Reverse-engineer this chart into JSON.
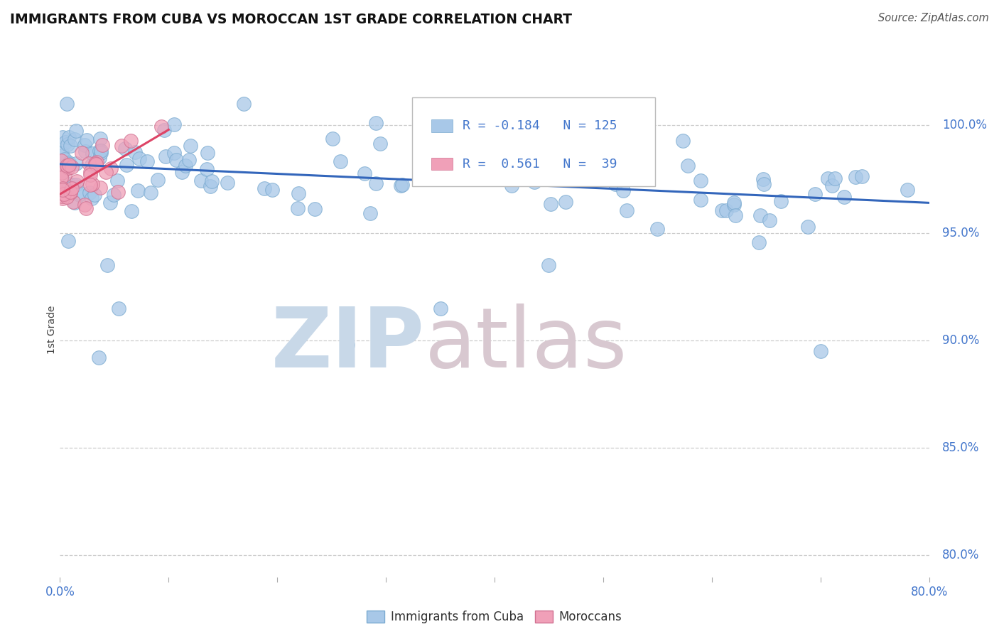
{
  "title": "IMMIGRANTS FROM CUBA VS MOROCCAN 1ST GRADE CORRELATION CHART",
  "source_text": "Source: ZipAtlas.com",
  "ylabel_label": "1st Grade",
  "y_ticks": [
    80.0,
    85.0,
    90.0,
    95.0,
    100.0
  ],
  "x_min": 0.0,
  "x_max": 80.0,
  "y_min": 79.0,
  "y_max": 102.0,
  "R_blue": -0.184,
  "N_blue": 125,
  "R_pink": 0.561,
  "N_pink": 39,
  "blue_color": "#A8C8E8",
  "blue_edge_color": "#7AAAD0",
  "pink_color": "#F0A0B8",
  "pink_edge_color": "#D07090",
  "blue_line_color": "#3366BB",
  "pink_line_color": "#DD4466",
  "legend_blue_label": "Immigrants from Cuba",
  "legend_pink_label": "Moroccans",
  "title_color": "#111111",
  "axis_label_color": "#4477CC",
  "source_color": "#555555",
  "background_color": "#FFFFFF",
  "watermark_zip_color": "#C8D8E8",
  "watermark_atlas_color": "#D8C8D0"
}
